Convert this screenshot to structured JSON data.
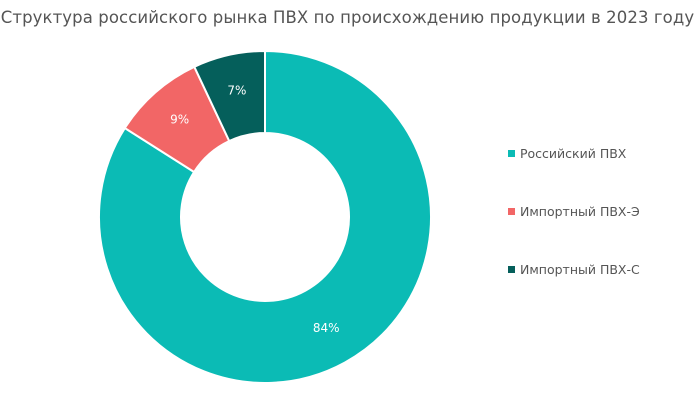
{
  "title": "Структура российского рынка ПВХ по происхождению продукции в 2023 году",
  "chart_data": {
    "type": "pie",
    "subtype": "donut",
    "title": "Структура российского рынка ПВХ по происхождению продукции в 2023 году",
    "categories": [
      "Российский ПВХ",
      "Импортный ПВХ-Э",
      "Импортный ПВХ-С"
    ],
    "values": [
      84,
      9,
      7
    ],
    "labels": [
      "84%",
      "9%",
      "7%"
    ],
    "colors": [
      "#0BBBB5",
      "#F26666",
      "#055F5B"
    ],
    "unit": "%",
    "legend_position": "right"
  },
  "legend": [
    {
      "label": "Российский ПВХ",
      "color": "#0BBBB5"
    },
    {
      "label": "Импортный ПВХ-Э",
      "color": "#F26666"
    },
    {
      "label": "Импортный ПВХ-С",
      "color": "#055F5B"
    }
  ]
}
